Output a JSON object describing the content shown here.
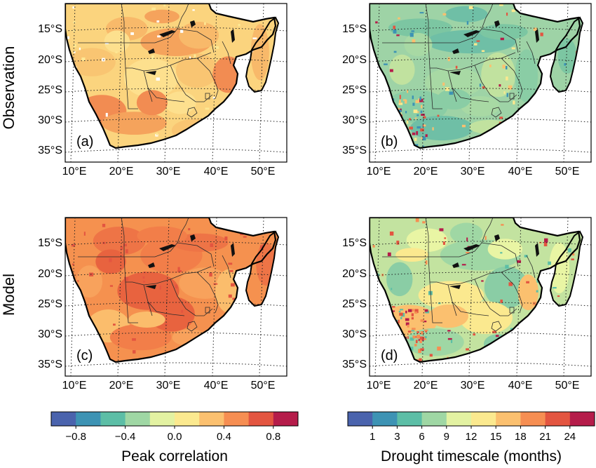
{
  "rows": [
    {
      "label": "Observation"
    },
    {
      "label": "Model"
    }
  ],
  "panels": [
    {
      "tag": "(a)",
      "field": "correlation",
      "variant": "obs"
    },
    {
      "tag": "(b)",
      "field": "timescale",
      "variant": "obs"
    },
    {
      "tag": "(c)",
      "field": "correlation",
      "variant": "model"
    },
    {
      "tag": "(d)",
      "field": "timescale",
      "variant": "model"
    }
  ],
  "axes": {
    "lat_labels": [
      "15°S",
      "20°S",
      "25°S",
      "30°S",
      "35°S"
    ],
    "lon_labels": [
      "10°E",
      "20°E",
      "30°E",
      "40°E",
      "50°E"
    ]
  },
  "colorbars": [
    {
      "label": "Peak correlation",
      "ticks": [
        "−0.8",
        "−0.4",
        "0.0",
        "0.4",
        "0.8"
      ],
      "colors": [
        "#4a63ad",
        "#3d93b4",
        "#5cbea6",
        "#9fd7a4",
        "#e3f2a2",
        "#fbe98f",
        "#fbc06f",
        "#f68e52",
        "#e35540",
        "#b51c4a"
      ]
    },
    {
      "label": "Drought timescale (months)",
      "ticks": [
        "1",
        "3",
        "6",
        "9",
        "12",
        "15",
        "18",
        "21",
        "24"
      ],
      "colors": [
        "#4a63ad",
        "#3d93b4",
        "#5cbea6",
        "#9fd7a4",
        "#e3f2a2",
        "#fbe98f",
        "#fbc06f",
        "#f68e52",
        "#e35540",
        "#b51c4a"
      ]
    }
  ]
}
